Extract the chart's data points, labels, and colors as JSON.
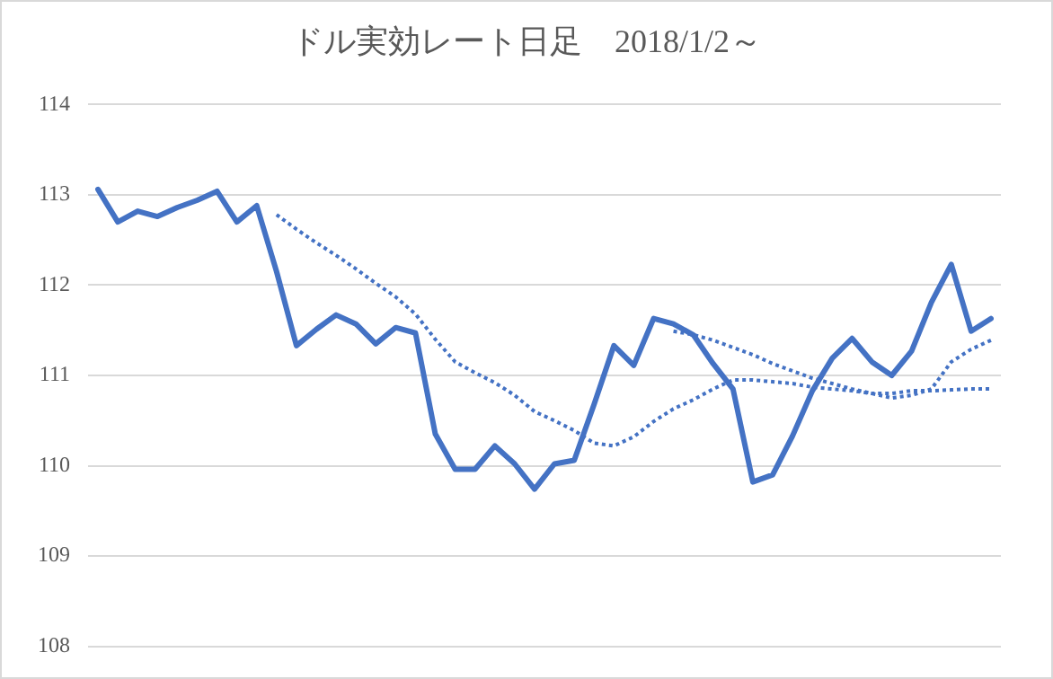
{
  "chart_data": {
    "type": "line",
    "title": "ドル実効レート日足　2018/1/2～",
    "categories": [
      null,
      null,
      null,
      null,
      null,
      null,
      null,
      null,
      null,
      null,
      null,
      null,
      null,
      null,
      null,
      null,
      null,
      null,
      null,
      null,
      null,
      null,
      null,
      null,
      null,
      null,
      null,
      null,
      null,
      null,
      null,
      null,
      null,
      null,
      null,
      null,
      null,
      null,
      null,
      null,
      null,
      null,
      null,
      null,
      null,
      null
    ],
    "series": [
      {
        "color": "#4472c4",
        "line_style": "solid",
        "values": [
          113.06,
          112.7,
          112.82,
          112.76,
          112.86,
          112.94,
          113.04,
          112.7,
          112.88,
          112.15,
          111.33,
          111.51,
          111.67,
          111.57,
          111.35,
          111.53,
          111.47,
          110.35,
          109.96,
          109.96,
          110.22,
          110.02,
          109.74,
          110.02,
          110.06,
          110.68,
          111.33,
          111.11,
          111.63,
          111.57,
          111.45,
          111.13,
          110.85,
          109.82,
          109.9,
          110.33,
          110.83,
          111.19,
          111.41,
          111.15,
          111.0,
          111.27,
          111.81,
          112.23,
          111.49,
          111.63
        ]
      },
      {
        "color": "#4472c4",
        "line_style": "dotted",
        "values": [
          null,
          null,
          null,
          null,
          null,
          null,
          null,
          null,
          null,
          112.78,
          112.62,
          112.47,
          112.33,
          112.18,
          112.02,
          111.87,
          111.68,
          111.4,
          111.15,
          111.03,
          110.92,
          110.78,
          110.6,
          110.5,
          110.39,
          110.25,
          110.22,
          110.32,
          110.49,
          110.63,
          110.73,
          110.85,
          110.95,
          110.95,
          110.93,
          110.91,
          110.87,
          110.85,
          110.83,
          110.8,
          110.8,
          110.83,
          110.83,
          110.84,
          110.85,
          110.85
        ]
      },
      {
        "color": "#4472c4",
        "line_style": "dotted",
        "values": [
          null,
          null,
          null,
          null,
          null,
          null,
          null,
          null,
          null,
          null,
          null,
          null,
          null,
          null,
          null,
          null,
          null,
          null,
          null,
          null,
          null,
          null,
          null,
          null,
          null,
          null,
          null,
          null,
          null,
          111.49,
          111.45,
          111.39,
          111.31,
          111.23,
          111.13,
          111.05,
          110.97,
          110.91,
          110.85,
          110.8,
          110.75,
          110.78,
          110.85,
          111.15,
          111.29,
          111.39
        ]
      }
    ],
    "ylim": [
      108,
      114
    ],
    "yticks": [
      108,
      109,
      110,
      111,
      112,
      113,
      114
    ],
    "grid": "y",
    "legend": false,
    "tick_labels": "y",
    "marker": "none"
  }
}
